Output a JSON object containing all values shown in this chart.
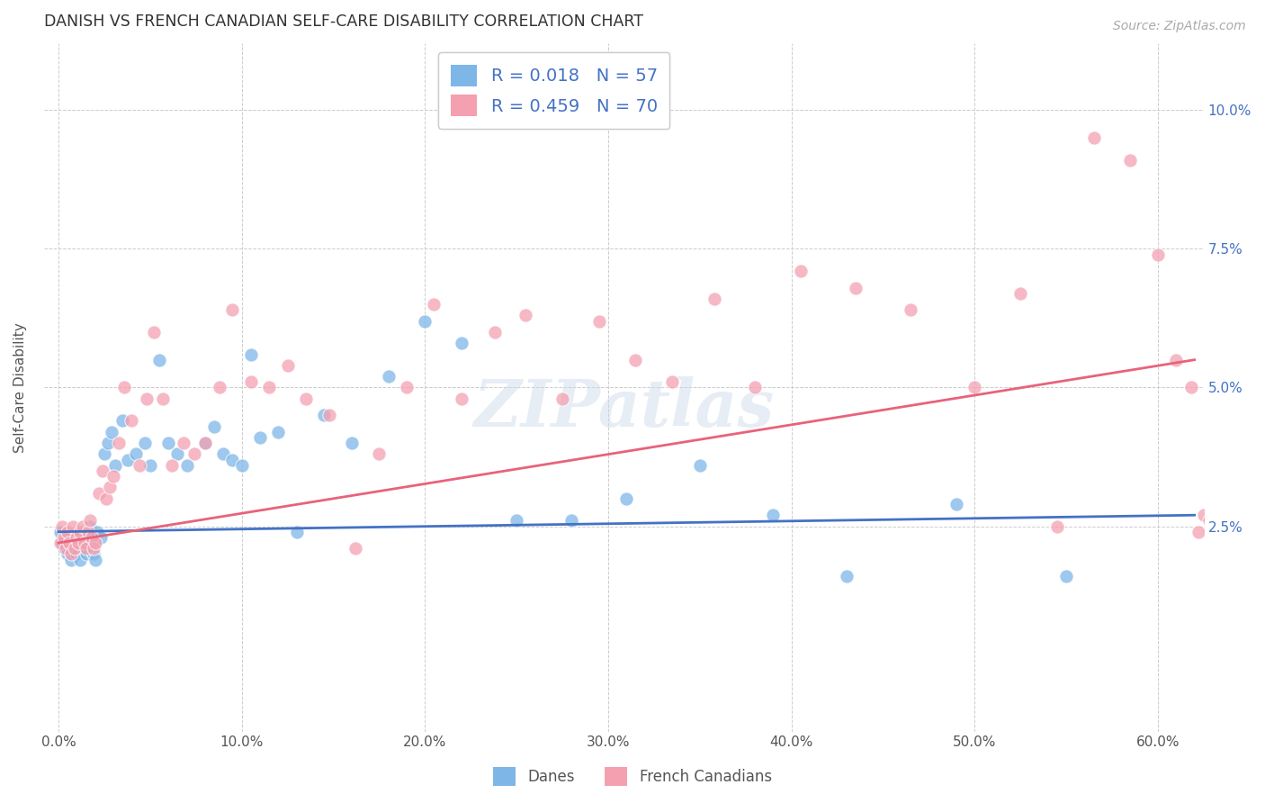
{
  "title": "DANISH VS FRENCH CANADIAN SELF-CARE DISABILITY CORRELATION CHART",
  "source": "Source: ZipAtlas.com",
  "ylabel": "Self-Care Disability",
  "xlabel_ticks": [
    "0.0%",
    "10.0%",
    "20.0%",
    "30.0%",
    "40.0%",
    "50.0%",
    "60.0%"
  ],
  "xlabel_vals": [
    0.0,
    0.1,
    0.2,
    0.3,
    0.4,
    0.5,
    0.6
  ],
  "ytick_labels": [
    "2.5%",
    "5.0%",
    "7.5%",
    "10.0%"
  ],
  "ytick_vals": [
    0.025,
    0.05,
    0.075,
    0.1
  ],
  "xlim": [
    -0.008,
    0.625
  ],
  "ylim": [
    -0.012,
    0.112
  ],
  "danes_color": "#7EB6E8",
  "french_color": "#F4A0B0",
  "danes_line_color": "#4472C4",
  "french_line_color": "#E8637A",
  "legend_label_danes": "R = 0.018   N = 57",
  "legend_label_french": "R = 0.459   N = 70",
  "legend_bottom_danes": "Danes",
  "legend_bottom_french": "French Canadians",
  "danes_x": [
    0.001,
    0.002,
    0.003,
    0.004,
    0.005,
    0.006,
    0.007,
    0.008,
    0.009,
    0.01,
    0.011,
    0.012,
    0.013,
    0.014,
    0.015,
    0.016,
    0.017,
    0.018,
    0.019,
    0.02,
    0.021,
    0.023,
    0.025,
    0.027,
    0.029,
    0.031,
    0.035,
    0.038,
    0.042,
    0.047,
    0.05,
    0.055,
    0.06,
    0.065,
    0.07,
    0.08,
    0.085,
    0.09,
    0.095,
    0.1,
    0.105,
    0.11,
    0.12,
    0.13,
    0.145,
    0.16,
    0.18,
    0.2,
    0.22,
    0.25,
    0.28,
    0.31,
    0.35,
    0.39,
    0.43,
    0.49,
    0.55
  ],
  "danes_y": [
    0.024,
    0.022,
    0.021,
    0.023,
    0.02,
    0.022,
    0.019,
    0.023,
    0.021,
    0.02,
    0.024,
    0.019,
    0.022,
    0.021,
    0.02,
    0.023,
    0.025,
    0.022,
    0.02,
    0.019,
    0.024,
    0.023,
    0.038,
    0.04,
    0.042,
    0.036,
    0.044,
    0.037,
    0.038,
    0.04,
    0.036,
    0.055,
    0.04,
    0.038,
    0.036,
    0.04,
    0.043,
    0.038,
    0.037,
    0.036,
    0.056,
    0.041,
    0.042,
    0.024,
    0.045,
    0.04,
    0.052,
    0.062,
    0.058,
    0.026,
    0.026,
    0.03,
    0.036,
    0.027,
    0.016,
    0.029,
    0.016
  ],
  "french_x": [
    0.001,
    0.002,
    0.003,
    0.004,
    0.005,
    0.006,
    0.007,
    0.008,
    0.009,
    0.01,
    0.011,
    0.012,
    0.013,
    0.014,
    0.015,
    0.016,
    0.017,
    0.018,
    0.019,
    0.02,
    0.022,
    0.024,
    0.026,
    0.028,
    0.03,
    0.033,
    0.036,
    0.04,
    0.044,
    0.048,
    0.052,
    0.057,
    0.062,
    0.068,
    0.074,
    0.08,
    0.088,
    0.095,
    0.105,
    0.115,
    0.125,
    0.135,
    0.148,
    0.162,
    0.175,
    0.19,
    0.205,
    0.22,
    0.238,
    0.255,
    0.275,
    0.295,
    0.315,
    0.335,
    0.358,
    0.38,
    0.405,
    0.435,
    0.465,
    0.5,
    0.525,
    0.545,
    0.565,
    0.585,
    0.6,
    0.61,
    0.618,
    0.622,
    0.625,
    0.628
  ],
  "french_y": [
    0.022,
    0.025,
    0.023,
    0.021,
    0.024,
    0.022,
    0.02,
    0.025,
    0.021,
    0.023,
    0.022,
    0.024,
    0.025,
    0.022,
    0.021,
    0.024,
    0.026,
    0.023,
    0.021,
    0.022,
    0.031,
    0.035,
    0.03,
    0.032,
    0.034,
    0.04,
    0.05,
    0.044,
    0.036,
    0.048,
    0.06,
    0.048,
    0.036,
    0.04,
    0.038,
    0.04,
    0.05,
    0.064,
    0.051,
    0.05,
    0.054,
    0.048,
    0.045,
    0.021,
    0.038,
    0.05,
    0.065,
    0.048,
    0.06,
    0.063,
    0.048,
    0.062,
    0.055,
    0.051,
    0.066,
    0.05,
    0.071,
    0.068,
    0.064,
    0.05,
    0.067,
    0.025,
    0.095,
    0.091,
    0.074,
    0.055,
    0.05,
    0.024,
    0.027,
    0.026
  ],
  "watermark": "ZIPatlas",
  "background_color": "#ffffff",
  "grid_color": "#cccccc"
}
